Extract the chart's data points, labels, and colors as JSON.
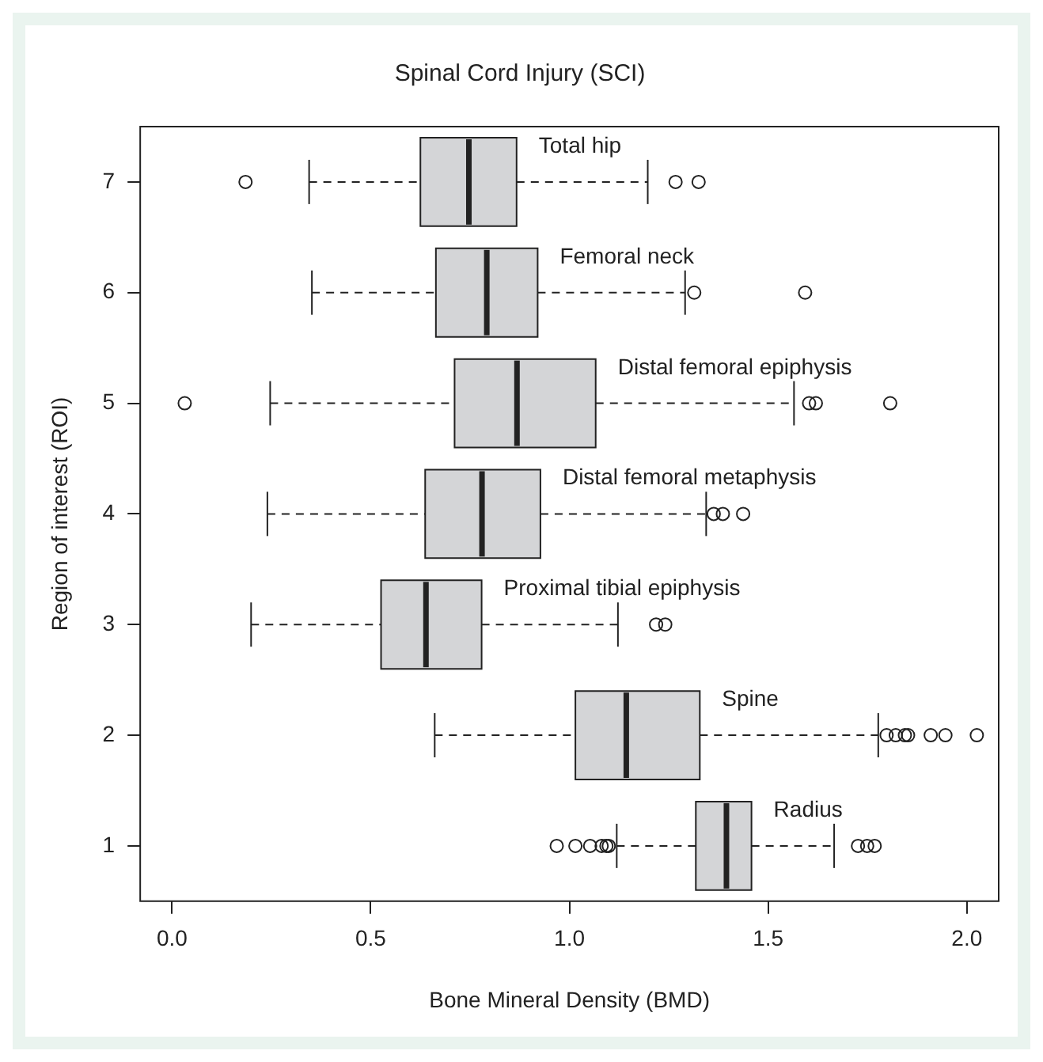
{
  "chart_data": {
    "type": "box",
    "orientation": "horizontal",
    "title": "Spinal Cord Injury (SCI)",
    "xlabel": "Bone Mineral Density (BMD)",
    "ylabel": "Region of interest (ROI)",
    "categories": [
      "7",
      "6",
      "5",
      "4",
      "3",
      "2",
      "1"
    ],
    "color": "#d4d5d7",
    "boxes": [
      {
        "low": 0.345,
        "q1": 0.625,
        "median": 0.747,
        "q3": 0.867,
        "high": 1.197,
        "outliers": [
          0.185,
          1.267,
          1.325
        ]
      },
      {
        "low": 0.352,
        "q1": 0.664,
        "median": 0.792,
        "q3": 0.92,
        "high": 1.291,
        "outliers": [
          1.314,
          1.593
        ]
      },
      {
        "low": 0.247,
        "q1": 0.711,
        "median": 0.868,
        "q3": 1.066,
        "high": 1.565,
        "outliers": [
          0.032,
          1.603,
          1.62,
          1.807
        ]
      },
      {
        "low": 0.24,
        "q1": 0.637,
        "median": 0.78,
        "q3": 0.927,
        "high": 1.344,
        "outliers": [
          1.363,
          1.386,
          1.437
        ]
      },
      {
        "low": 0.199,
        "q1": 0.526,
        "median": 0.639,
        "q3": 0.779,
        "high": 1.122,
        "outliers": [
          1.218,
          1.241
        ]
      },
      {
        "low": 0.661,
        "q1": 1.015,
        "median": 1.143,
        "q3": 1.328,
        "high": 1.777,
        "outliers": [
          1.798,
          1.821,
          1.844,
          1.852,
          1.909,
          1.946,
          2.025
        ]
      },
      {
        "low": 1.119,
        "q1": 1.318,
        "median": 1.395,
        "q3": 1.458,
        "high": 1.666,
        "outliers": [
          0.968,
          1.015,
          1.052,
          1.081,
          1.093,
          1.099,
          1.726,
          1.749,
          1.768
        ]
      }
    ],
    "xlim": [
      -0.08,
      2.08
    ],
    "xticks": [
      {
        "value": 0,
        "label": "0.0"
      },
      {
        "value": 0.5,
        "label": "0.5"
      },
      {
        "value": 1,
        "label": "1.0"
      },
      {
        "value": 1.5,
        "label": "1.5"
      },
      {
        "value": 2,
        "label": "2.0"
      }
    ],
    "annotations": [
      "Total hip",
      "Femoral neck",
      "Distal femoral epiphysis",
      "Distal femoral metaphysis",
      "Proximal tibial epiphysis",
      "Spine",
      "Radius"
    ],
    "grid": false,
    "legend": false
  }
}
